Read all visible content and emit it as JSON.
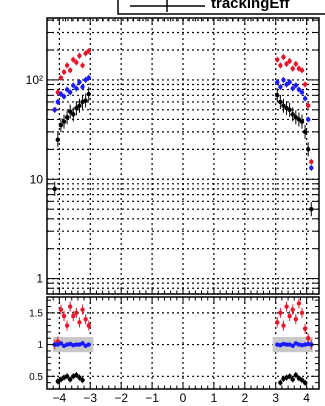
{
  "legend": {
    "label": "trackingEff"
  },
  "chart_data": [
    {
      "type": "scatter",
      "panel": "main",
      "yscale": "log",
      "xlim": [
        -4.4,
        4.4
      ],
      "ylim": [
        0.7,
        420
      ],
      "grid": true,
      "x_ticks": [
        -4,
        -3,
        -2,
        -1,
        0,
        1,
        2,
        3,
        4
      ],
      "y_ticks": [
        {
          "value": 1,
          "label": "1"
        },
        {
          "value": 10,
          "label": "10"
        },
        {
          "value": 100,
          "label": "10²"
        }
      ],
      "series": [
        {
          "color": "#e8152b",
          "x": [
            -4.15,
            -4.05,
            -3.95,
            -3.85,
            -3.75,
            -3.65,
            -3.55,
            -3.45,
            -3.35,
            -3.25,
            -3.15,
            -3.05,
            3.05,
            3.15,
            3.25,
            3.35,
            3.45,
            3.55,
            3.65,
            3.75,
            3.85,
            3.95,
            4.05,
            4.15
          ],
          "y": [
            50,
            75,
            105,
            120,
            140,
            125,
            160,
            150,
            175,
            140,
            185,
            195,
            160,
            140,
            170,
            145,
            155,
            130,
            145,
            130,
            125,
            90,
            55,
            15
          ]
        },
        {
          "color": "#1a1aff",
          "x": [
            -4.15,
            -4.05,
            -3.95,
            -3.85,
            -3.75,
            -3.65,
            -3.55,
            -3.45,
            -3.35,
            -3.25,
            -3.15,
            -3.05,
            3.05,
            3.15,
            3.25,
            3.35,
            3.45,
            3.55,
            3.65,
            3.75,
            3.85,
            3.95,
            4.05,
            4.15
          ],
          "y": [
            50,
            60,
            72,
            68,
            80,
            75,
            88,
            82,
            95,
            85,
            100,
            105,
            95,
            85,
            100,
            90,
            95,
            82,
            88,
            80,
            75,
            65,
            40,
            13
          ]
        },
        {
          "color": "#000000",
          "x": [
            -4.15,
            -4.05,
            -3.95,
            -3.85,
            -3.75,
            -3.65,
            -3.55,
            -3.45,
            -3.35,
            -3.25,
            -3.15,
            -3.05,
            3.05,
            3.15,
            3.25,
            3.35,
            3.45,
            3.55,
            3.65,
            3.75,
            3.85,
            3.95,
            4.05,
            4.15
          ],
          "y": [
            8,
            25,
            35,
            38,
            42,
            48,
            45,
            52,
            55,
            60,
            62,
            72,
            70,
            60,
            55,
            52,
            50,
            45,
            42,
            40,
            38,
            30,
            20,
            5
          ]
        }
      ]
    },
    {
      "type": "scatter",
      "panel": "ratio",
      "xlim": [
        -4.4,
        4.4
      ],
      "ylim": [
        0.3,
        1.75
      ],
      "grid": true,
      "y_ticks": [
        {
          "value": 0.5,
          "label": "0.5"
        },
        {
          "value": 1,
          "label": "1"
        },
        {
          "value": 1.5,
          "label": "1.5"
        }
      ],
      "band": {
        "color": "#c8c8c8",
        "ranges": [
          [
            -4.2,
            -2.9
          ],
          [
            2.9,
            4.2
          ]
        ],
        "lower": 0.88,
        "upper": 1.12
      },
      "series": [
        {
          "color": "#e8152b",
          "x": [
            -4.15,
            -4.05,
            -3.95,
            -3.85,
            -3.75,
            -3.65,
            -3.55,
            -3.45,
            -3.35,
            -3.25,
            -3.15,
            -3.05,
            3.05,
            3.15,
            3.25,
            3.35,
            3.45,
            3.55,
            3.65,
            3.75,
            3.85,
            3.95,
            4.05,
            4.15
          ],
          "y": [
            1.0,
            1.05,
            1.55,
            1.45,
            1.3,
            1.6,
            1.45,
            1.5,
            1.35,
            1.55,
            1.4,
            1.3,
            1.35,
            1.5,
            1.3,
            1.6,
            1.45,
            1.55,
            1.4,
            1.65,
            1.5,
            1.25,
            1.1,
            1.0
          ]
        },
        {
          "color": "#1a1aff",
          "x": [
            -4.15,
            -4.05,
            -3.95,
            -3.85,
            -3.75,
            -3.65,
            -3.55,
            -3.45,
            -3.35,
            -3.25,
            -3.15,
            -3.05,
            3.05,
            3.15,
            3.25,
            3.35,
            3.45,
            3.55,
            3.65,
            3.75,
            3.85,
            3.95,
            4.05,
            4.15
          ],
          "y": [
            1.0,
            1.0,
            1.02,
            0.98,
            1.0,
            1.01,
            0.99,
            1.0,
            1.0,
            1.02,
            0.98,
            1.0,
            1.0,
            0.99,
            1.01,
            1.0,
            1.0,
            0.98,
            1.02,
            1.0,
            0.99,
            1.0,
            1.01,
            1.0
          ]
        },
        {
          "color": "#000000",
          "x": [
            -4.05,
            -3.95,
            -3.85,
            -3.75,
            -3.65,
            -3.55,
            -3.45,
            -3.35,
            -3.25,
            3.15,
            3.25,
            3.35,
            3.45,
            3.55,
            3.65,
            3.75,
            3.85,
            3.95
          ],
          "y": [
            0.42,
            0.45,
            0.48,
            0.5,
            0.45,
            0.5,
            0.52,
            0.48,
            0.44,
            0.4,
            0.46,
            0.48,
            0.5,
            0.45,
            0.52,
            0.47,
            0.44,
            0.4
          ]
        }
      ]
    }
  ]
}
